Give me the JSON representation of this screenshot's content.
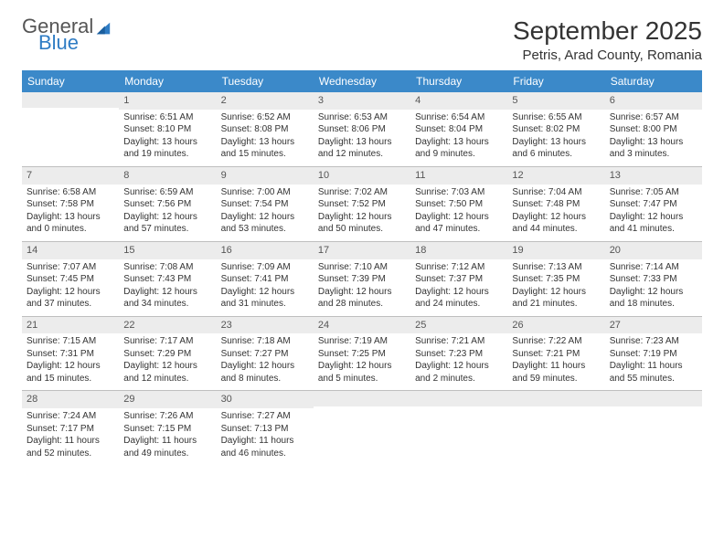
{
  "brand": {
    "top": "General",
    "bottom": "Blue"
  },
  "title": "September 2025",
  "location": "Petris, Arad County, Romania",
  "colors": {
    "header_bg": "#3b89c9",
    "header_text": "#ffffff",
    "dayhead_bg": "#ececec",
    "border": "#bfbfbf",
    "brand_accent": "#2f7cc4"
  },
  "weekdays": [
    "Sunday",
    "Monday",
    "Tuesday",
    "Wednesday",
    "Thursday",
    "Friday",
    "Saturday"
  ],
  "weeks": [
    [
      {
        "n": "",
        "sr": "",
        "ss": "",
        "dl1": "",
        "dl2": ""
      },
      {
        "n": "1",
        "sr": "Sunrise: 6:51 AM",
        "ss": "Sunset: 8:10 PM",
        "dl1": "Daylight: 13 hours",
        "dl2": "and 19 minutes."
      },
      {
        "n": "2",
        "sr": "Sunrise: 6:52 AM",
        "ss": "Sunset: 8:08 PM",
        "dl1": "Daylight: 13 hours",
        "dl2": "and 15 minutes."
      },
      {
        "n": "3",
        "sr": "Sunrise: 6:53 AM",
        "ss": "Sunset: 8:06 PM",
        "dl1": "Daylight: 13 hours",
        "dl2": "and 12 minutes."
      },
      {
        "n": "4",
        "sr": "Sunrise: 6:54 AM",
        "ss": "Sunset: 8:04 PM",
        "dl1": "Daylight: 13 hours",
        "dl2": "and 9 minutes."
      },
      {
        "n": "5",
        "sr": "Sunrise: 6:55 AM",
        "ss": "Sunset: 8:02 PM",
        "dl1": "Daylight: 13 hours",
        "dl2": "and 6 minutes."
      },
      {
        "n": "6",
        "sr": "Sunrise: 6:57 AM",
        "ss": "Sunset: 8:00 PM",
        "dl1": "Daylight: 13 hours",
        "dl2": "and 3 minutes."
      }
    ],
    [
      {
        "n": "7",
        "sr": "Sunrise: 6:58 AM",
        "ss": "Sunset: 7:58 PM",
        "dl1": "Daylight: 13 hours",
        "dl2": "and 0 minutes."
      },
      {
        "n": "8",
        "sr": "Sunrise: 6:59 AM",
        "ss": "Sunset: 7:56 PM",
        "dl1": "Daylight: 12 hours",
        "dl2": "and 57 minutes."
      },
      {
        "n": "9",
        "sr": "Sunrise: 7:00 AM",
        "ss": "Sunset: 7:54 PM",
        "dl1": "Daylight: 12 hours",
        "dl2": "and 53 minutes."
      },
      {
        "n": "10",
        "sr": "Sunrise: 7:02 AM",
        "ss": "Sunset: 7:52 PM",
        "dl1": "Daylight: 12 hours",
        "dl2": "and 50 minutes."
      },
      {
        "n": "11",
        "sr": "Sunrise: 7:03 AM",
        "ss": "Sunset: 7:50 PM",
        "dl1": "Daylight: 12 hours",
        "dl2": "and 47 minutes."
      },
      {
        "n": "12",
        "sr": "Sunrise: 7:04 AM",
        "ss": "Sunset: 7:48 PM",
        "dl1": "Daylight: 12 hours",
        "dl2": "and 44 minutes."
      },
      {
        "n": "13",
        "sr": "Sunrise: 7:05 AM",
        "ss": "Sunset: 7:47 PM",
        "dl1": "Daylight: 12 hours",
        "dl2": "and 41 minutes."
      }
    ],
    [
      {
        "n": "14",
        "sr": "Sunrise: 7:07 AM",
        "ss": "Sunset: 7:45 PM",
        "dl1": "Daylight: 12 hours",
        "dl2": "and 37 minutes."
      },
      {
        "n": "15",
        "sr": "Sunrise: 7:08 AM",
        "ss": "Sunset: 7:43 PM",
        "dl1": "Daylight: 12 hours",
        "dl2": "and 34 minutes."
      },
      {
        "n": "16",
        "sr": "Sunrise: 7:09 AM",
        "ss": "Sunset: 7:41 PM",
        "dl1": "Daylight: 12 hours",
        "dl2": "and 31 minutes."
      },
      {
        "n": "17",
        "sr": "Sunrise: 7:10 AM",
        "ss": "Sunset: 7:39 PM",
        "dl1": "Daylight: 12 hours",
        "dl2": "and 28 minutes."
      },
      {
        "n": "18",
        "sr": "Sunrise: 7:12 AM",
        "ss": "Sunset: 7:37 PM",
        "dl1": "Daylight: 12 hours",
        "dl2": "and 24 minutes."
      },
      {
        "n": "19",
        "sr": "Sunrise: 7:13 AM",
        "ss": "Sunset: 7:35 PM",
        "dl1": "Daylight: 12 hours",
        "dl2": "and 21 minutes."
      },
      {
        "n": "20",
        "sr": "Sunrise: 7:14 AM",
        "ss": "Sunset: 7:33 PM",
        "dl1": "Daylight: 12 hours",
        "dl2": "and 18 minutes."
      }
    ],
    [
      {
        "n": "21",
        "sr": "Sunrise: 7:15 AM",
        "ss": "Sunset: 7:31 PM",
        "dl1": "Daylight: 12 hours",
        "dl2": "and 15 minutes."
      },
      {
        "n": "22",
        "sr": "Sunrise: 7:17 AM",
        "ss": "Sunset: 7:29 PM",
        "dl1": "Daylight: 12 hours",
        "dl2": "and 12 minutes."
      },
      {
        "n": "23",
        "sr": "Sunrise: 7:18 AM",
        "ss": "Sunset: 7:27 PM",
        "dl1": "Daylight: 12 hours",
        "dl2": "and 8 minutes."
      },
      {
        "n": "24",
        "sr": "Sunrise: 7:19 AM",
        "ss": "Sunset: 7:25 PM",
        "dl1": "Daylight: 12 hours",
        "dl2": "and 5 minutes."
      },
      {
        "n": "25",
        "sr": "Sunrise: 7:21 AM",
        "ss": "Sunset: 7:23 PM",
        "dl1": "Daylight: 12 hours",
        "dl2": "and 2 minutes."
      },
      {
        "n": "26",
        "sr": "Sunrise: 7:22 AM",
        "ss": "Sunset: 7:21 PM",
        "dl1": "Daylight: 11 hours",
        "dl2": "and 59 minutes."
      },
      {
        "n": "27",
        "sr": "Sunrise: 7:23 AM",
        "ss": "Sunset: 7:19 PM",
        "dl1": "Daylight: 11 hours",
        "dl2": "and 55 minutes."
      }
    ],
    [
      {
        "n": "28",
        "sr": "Sunrise: 7:24 AM",
        "ss": "Sunset: 7:17 PM",
        "dl1": "Daylight: 11 hours",
        "dl2": "and 52 minutes."
      },
      {
        "n": "29",
        "sr": "Sunrise: 7:26 AM",
        "ss": "Sunset: 7:15 PM",
        "dl1": "Daylight: 11 hours",
        "dl2": "and 49 minutes."
      },
      {
        "n": "30",
        "sr": "Sunrise: 7:27 AM",
        "ss": "Sunset: 7:13 PM",
        "dl1": "Daylight: 11 hours",
        "dl2": "and 46 minutes."
      },
      {
        "n": "",
        "sr": "",
        "ss": "",
        "dl1": "",
        "dl2": ""
      },
      {
        "n": "",
        "sr": "",
        "ss": "",
        "dl1": "",
        "dl2": ""
      },
      {
        "n": "",
        "sr": "",
        "ss": "",
        "dl1": "",
        "dl2": ""
      },
      {
        "n": "",
        "sr": "",
        "ss": "",
        "dl1": "",
        "dl2": ""
      }
    ]
  ]
}
